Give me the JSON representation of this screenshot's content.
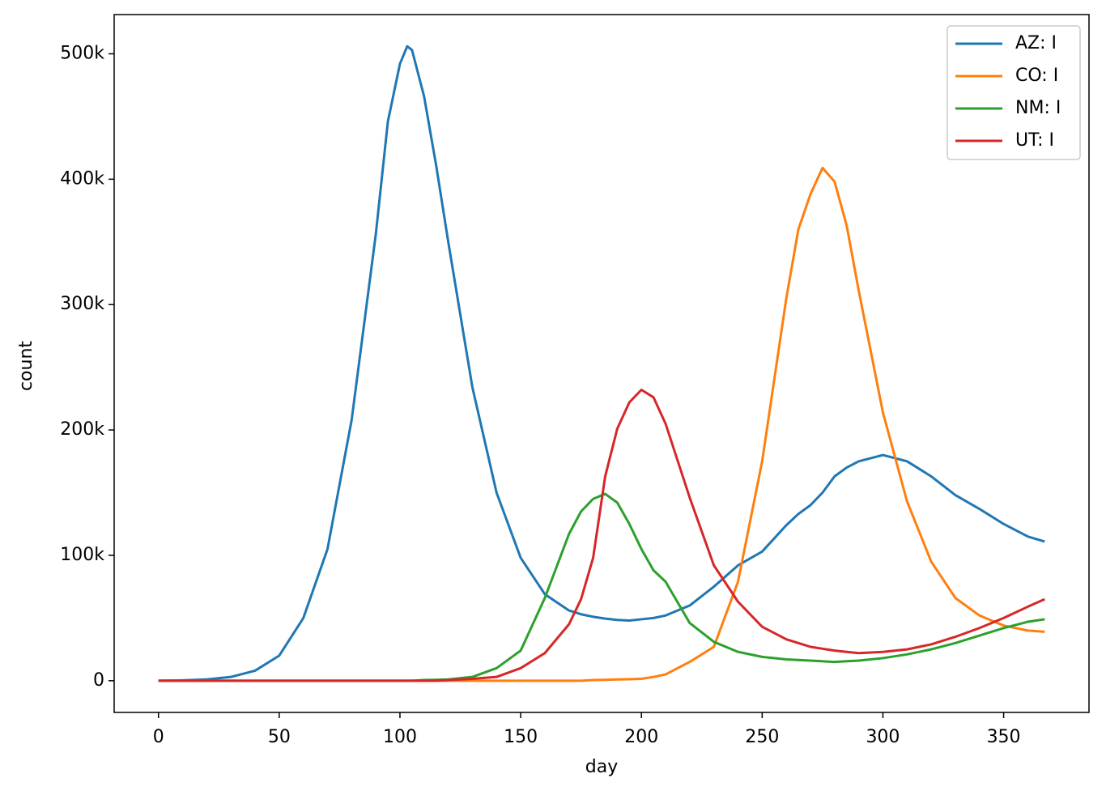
{
  "chart_data": {
    "type": "line",
    "xlabel": "day",
    "ylabel": "count",
    "x": [
      0,
      10,
      20,
      30,
      40,
      50,
      60,
      70,
      80,
      90,
      95,
      100,
      103,
      105,
      110,
      115,
      120,
      130,
      140,
      150,
      160,
      170,
      175,
      180,
      185,
      190,
      195,
      200,
      205,
      210,
      220,
      230,
      240,
      250,
      260,
      265,
      270,
      275,
      280,
      285,
      290,
      300,
      310,
      320,
      330,
      340,
      350,
      360,
      367
    ],
    "series": [
      {
        "name": "AZ: I",
        "color": "#1f77b4",
        "values": [
          0,
          300,
          1000,
          3000,
          8000,
          20000,
          50000,
          105000,
          208000,
          356000,
          446000,
          492000,
          506000,
          503000,
          466000,
          411000,
          350000,
          234000,
          150000,
          98000,
          69000,
          56000,
          53000,
          51000,
          49500,
          48500,
          48000,
          49000,
          50000,
          52000,
          60000,
          75000,
          92000,
          103000,
          124000,
          133000,
          140000,
          150000,
          163000,
          170000,
          175000,
          180000,
          175000,
          163000,
          148000,
          137000,
          125000,
          115000,
          111000
        ]
      },
      {
        "name": "CO: I",
        "color": "#ff7f0e",
        "values": [
          0,
          0,
          0,
          0,
          0,
          0,
          0,
          0,
          0,
          0,
          0,
          0,
          0,
          0,
          0,
          0,
          0,
          0,
          0,
          0,
          0,
          0,
          0,
          500,
          700,
          1000,
          1200,
          1500,
          3000,
          5000,
          15000,
          27000,
          79000,
          175000,
          305000,
          360000,
          388000,
          409000,
          398000,
          363000,
          311000,
          214000,
          143000,
          95000,
          66000,
          52000,
          44000,
          40000,
          39000
        ]
      },
      {
        "name": "NM: I",
        "color": "#2ca02c",
        "values": [
          0,
          0,
          0,
          0,
          0,
          0,
          0,
          0,
          0,
          0,
          0,
          0,
          0,
          0,
          500,
          700,
          1000,
          3000,
          10000,
          24000,
          66000,
          117000,
          135000,
          145000,
          149000,
          142000,
          125000,
          105000,
          88000,
          79000,
          46000,
          31000,
          23000,
          19000,
          17000,
          16500,
          16000,
          15500,
          15000,
          15500,
          16000,
          18000,
          21000,
          25000,
          30000,
          36000,
          42000,
          47000,
          49000
        ]
      },
      {
        "name": "UT: I",
        "color": "#d62728",
        "values": [
          0,
          0,
          0,
          0,
          0,
          0,
          0,
          0,
          0,
          0,
          0,
          0,
          0,
          0,
          0,
          0,
          500,
          1500,
          3000,
          10000,
          22000,
          45000,
          65000,
          98000,
          163000,
          201000,
          222000,
          232000,
          226000,
          205000,
          146000,
          92000,
          63000,
          43000,
          33000,
          30000,
          27000,
          25500,
          24000,
          23000,
          22000,
          23000,
          25000,
          29000,
          35000,
          42000,
          50000,
          59000,
          65000
        ]
      }
    ],
    "xlim": [
      -18.35,
      385.35
    ],
    "xticks": [
      0,
      50,
      100,
      150,
      200,
      250,
      300,
      350
    ],
    "ylim": [
      -25300,
      531300
    ],
    "yticks": [
      0,
      {
        "value": 100000,
        "label": "100k"
      },
      {
        "value": 200000,
        "label": "200k"
      },
      {
        "value": 300000,
        "label": "300k"
      },
      {
        "value": 400000,
        "label": "400k"
      },
      {
        "value": 500000,
        "label": "500k"
      }
    ],
    "legend": "upper right",
    "grid": false
  }
}
